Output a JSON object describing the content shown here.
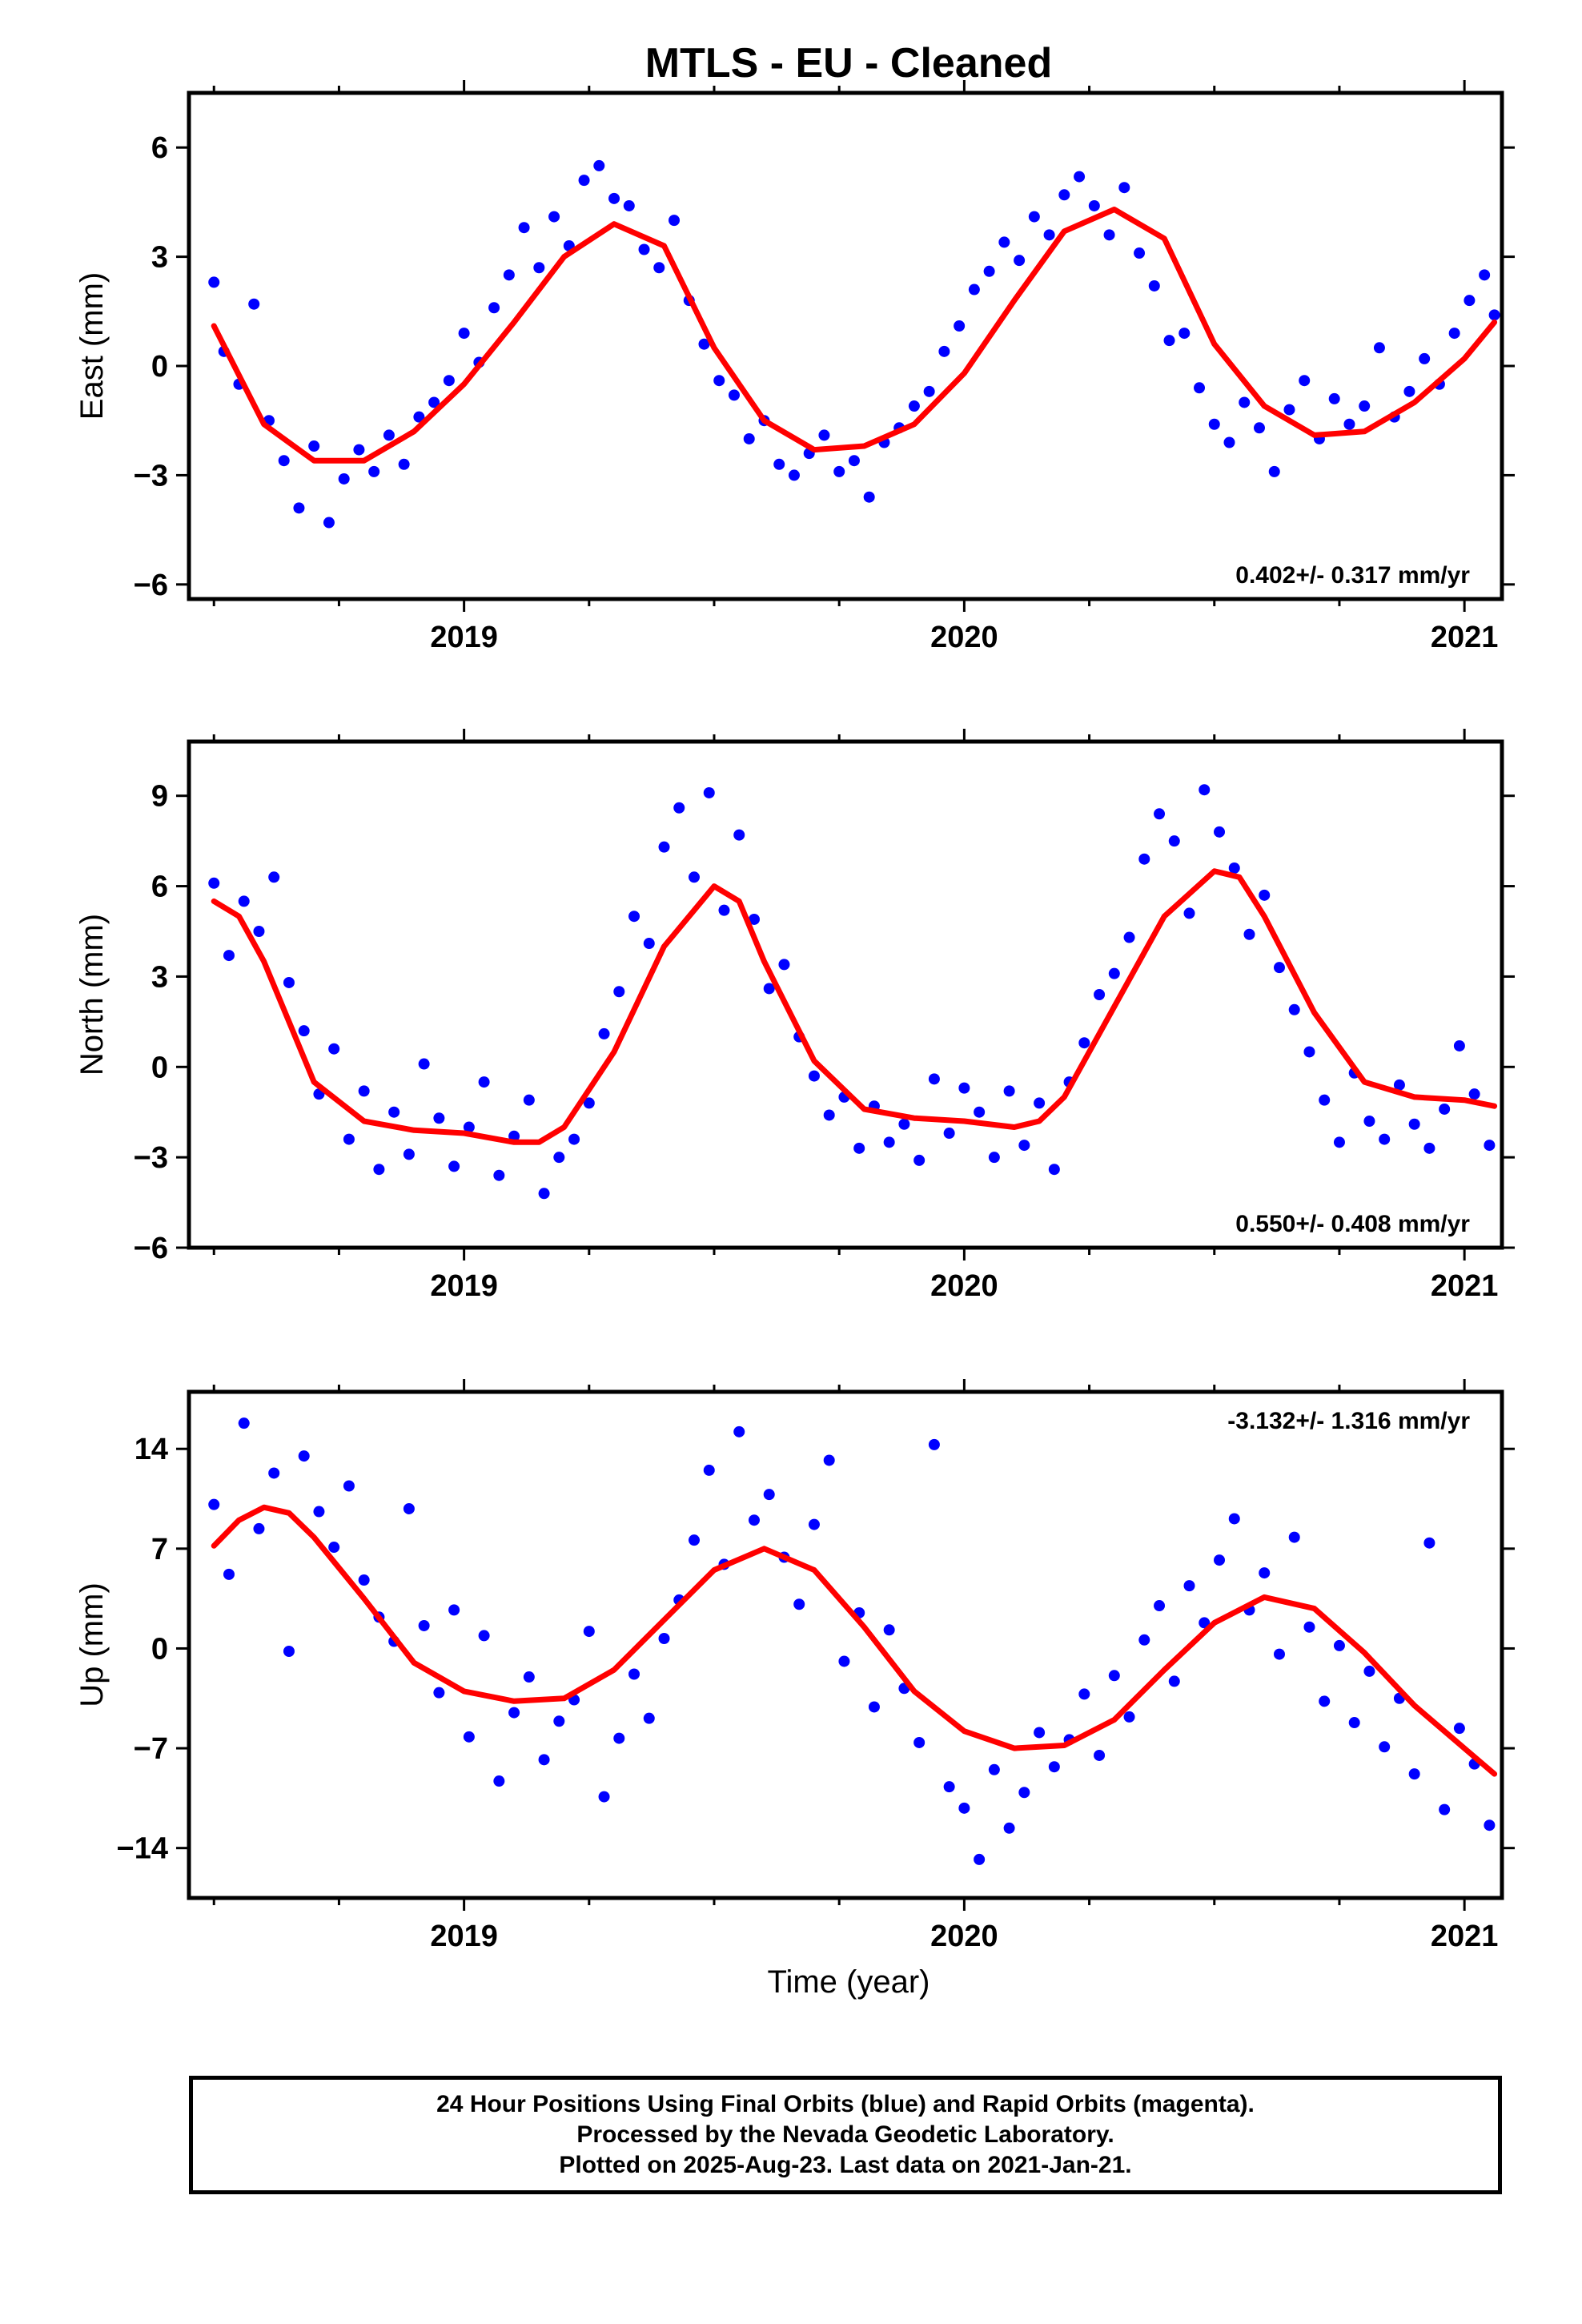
{
  "title": "MTLS  - EU - Cleaned",
  "x_axis_label": "Time (year)",
  "caption": {
    "line1": "24 Hour Positions Using Final Orbits (blue) and Rapid Orbits (magenta).",
    "line2": "Processed by the Nevada Geodetic Laboratory.",
    "line3": "Plotted on 2025-Aug-23. Last data on 2021-Jan-21."
  },
  "colors": {
    "points": "#0000ff",
    "fit": "#ff0000",
    "frame": "#000000"
  },
  "chart_data": [
    {
      "type": "scatter",
      "ylabel": "East (mm)",
      "rate_text": "0.402+/- 0.317 mm/yr",
      "xlim": [
        2018.45,
        2021.075
      ],
      "ylim": [
        -6.4,
        7.5
      ],
      "yticks": [
        6,
        3,
        0,
        -3,
        -6
      ],
      "ytick_labels": [
        "6",
        "3",
        "0",
        "−3",
        "−6"
      ],
      "xticks": [
        2019,
        2020,
        2021
      ],
      "xtick_labels": [
        "2019",
        "2020",
        "2021"
      ],
      "fit_curve": {
        "x": [
          2018.5,
          2018.6,
          2018.7,
          2018.8,
          2018.9,
          2019.0,
          2019.1,
          2019.2,
          2019.3,
          2019.4,
          2019.5,
          2019.6,
          2019.7,
          2019.8,
          2019.9,
          2020.0,
          2020.1,
          2020.2,
          2020.3,
          2020.4,
          2020.5,
          2020.6,
          2020.7,
          2020.8,
          2020.9,
          2021.0,
          2021.06
        ],
        "y": [
          1.1,
          -1.6,
          -2.6,
          -2.6,
          -1.8,
          -0.5,
          1.2,
          3.0,
          3.9,
          3.3,
          0.5,
          -1.5,
          -2.3,
          -2.2,
          -1.6,
          -0.2,
          1.8,
          3.7,
          4.3,
          3.5,
          0.6,
          -1.1,
          -1.9,
          -1.8,
          -1.0,
          0.2,
          1.2
        ]
      },
      "points": {
        "x": [
          2018.5,
          2018.52,
          2018.55,
          2018.58,
          2018.61,
          2018.64,
          2018.67,
          2018.7,
          2018.73,
          2018.76,
          2018.79,
          2018.82,
          2018.85,
          2018.88,
          2018.91,
          2018.94,
          2018.97,
          2019.0,
          2019.03,
          2019.06,
          2019.09,
          2019.12,
          2019.15,
          2019.18,
          2019.21,
          2019.24,
          2019.27,
          2019.3,
          2019.33,
          2019.36,
          2019.39,
          2019.42,
          2019.45,
          2019.48,
          2019.51,
          2019.54,
          2019.57,
          2019.6,
          2019.63,
          2019.66,
          2019.69,
          2019.72,
          2019.75,
          2019.78,
          2019.81,
          2019.84,
          2019.87,
          2019.9,
          2019.93,
          2019.96,
          2019.99,
          2020.02,
          2020.05,
          2020.08,
          2020.11,
          2020.14,
          2020.17,
          2020.2,
          2020.23,
          2020.26,
          2020.29,
          2020.32,
          2020.35,
          2020.38,
          2020.41,
          2020.44,
          2020.47,
          2020.5,
          2020.53,
          2020.56,
          2020.59,
          2020.62,
          2020.65,
          2020.68,
          2020.71,
          2020.74,
          2020.77,
          2020.8,
          2020.83,
          2020.86,
          2020.89,
          2020.92,
          2020.95,
          2020.98,
          2021.01,
          2021.04,
          2021.06
        ],
        "y": [
          2.3,
          0.4,
          -0.5,
          1.7,
          -1.5,
          -2.6,
          -3.9,
          -2.2,
          -4.3,
          -3.1,
          -2.3,
          -2.9,
          -1.9,
          -2.7,
          -1.4,
          -1.0,
          -0.4,
          0.9,
          0.1,
          1.6,
          2.5,
          3.8,
          2.7,
          4.1,
          3.3,
          5.1,
          5.5,
          4.6,
          4.4,
          3.2,
          2.7,
          4.0,
          1.8,
          0.6,
          -0.4,
          -0.8,
          -2.0,
          -1.5,
          -2.7,
          -3.0,
          -2.4,
          -1.9,
          -2.9,
          -2.6,
          -3.6,
          -2.1,
          -1.7,
          -1.1,
          -0.7,
          0.4,
          1.1,
          2.1,
          2.6,
          3.4,
          2.9,
          4.1,
          3.6,
          4.7,
          5.2,
          4.4,
          3.6,
          4.9,
          3.1,
          2.2,
          0.7,
          0.9,
          -0.6,
          -1.6,
          -2.1,
          -1.0,
          -1.7,
          -2.9,
          -1.2,
          -0.4,
          -2.0,
          -0.9,
          -1.6,
          -1.1,
          0.5,
          -1.4,
          -0.7,
          0.2,
          -0.5,
          0.9,
          1.8,
          2.5,
          1.4
        ]
      }
    },
    {
      "type": "scatter",
      "ylabel": "North (mm)",
      "rate_text": "0.550+/- 0.408 mm/yr",
      "xlim": [
        2018.45,
        2021.075
      ],
      "ylim": [
        -6.0,
        10.8
      ],
      "yticks": [
        9,
        6,
        3,
        0,
        -3,
        -6
      ],
      "ytick_labels": [
        "9",
        "6",
        "3",
        "0",
        "−3",
        "−6"
      ],
      "xticks": [
        2019,
        2020,
        2021
      ],
      "xtick_labels": [
        "2019",
        "2020",
        "2021"
      ],
      "fit_curve": {
        "x": [
          2018.5,
          2018.55,
          2018.6,
          2018.65,
          2018.7,
          2018.8,
          2018.9,
          2019.0,
          2019.1,
          2019.15,
          2019.2,
          2019.3,
          2019.4,
          2019.5,
          2019.55,
          2019.6,
          2019.7,
          2019.8,
          2019.9,
          2020.0,
          2020.1,
          2020.15,
          2020.2,
          2020.3,
          2020.4,
          2020.5,
          2020.55,
          2020.6,
          2020.7,
          2020.8,
          2020.9,
          2021.0,
          2021.06
        ],
        "y": [
          5.5,
          5.0,
          3.5,
          1.5,
          -0.5,
          -1.8,
          -2.1,
          -2.2,
          -2.5,
          -2.5,
          -2.0,
          0.5,
          4.0,
          6.0,
          5.5,
          3.5,
          0.2,
          -1.4,
          -1.7,
          -1.8,
          -2.0,
          -1.8,
          -1.0,
          2.0,
          5.0,
          6.5,
          6.3,
          5.0,
          1.8,
          -0.5,
          -1.0,
          -1.1,
          -1.3
        ]
      },
      "points": {
        "x": [
          2018.5,
          2018.53,
          2018.56,
          2018.59,
          2018.62,
          2018.65,
          2018.68,
          2018.71,
          2018.74,
          2018.77,
          2018.8,
          2018.83,
          2018.86,
          2018.89,
          2018.92,
          2018.95,
          2018.98,
          2019.01,
          2019.04,
          2019.07,
          2019.1,
          2019.13,
          2019.16,
          2019.19,
          2019.22,
          2019.25,
          2019.28,
          2019.31,
          2019.34,
          2019.37,
          2019.4,
          2019.43,
          2019.46,
          2019.49,
          2019.52,
          2019.55,
          2019.58,
          2019.61,
          2019.64,
          2019.67,
          2019.7,
          2019.73,
          2019.76,
          2019.79,
          2019.82,
          2019.85,
          2019.88,
          2019.91,
          2019.94,
          2019.97,
          2020.0,
          2020.03,
          2020.06,
          2020.09,
          2020.12,
          2020.15,
          2020.18,
          2020.21,
          2020.24,
          2020.27,
          2020.3,
          2020.33,
          2020.36,
          2020.39,
          2020.42,
          2020.45,
          2020.48,
          2020.51,
          2020.54,
          2020.57,
          2020.6,
          2020.63,
          2020.66,
          2020.69,
          2020.72,
          2020.75,
          2020.78,
          2020.81,
          2020.84,
          2020.87,
          2020.9,
          2020.93,
          2020.96,
          2020.99,
          2021.02,
          2021.05
        ],
        "y": [
          6.1,
          3.7,
          5.5,
          4.5,
          6.3,
          2.8,
          1.2,
          -0.9,
          0.6,
          -2.4,
          -0.8,
          -3.4,
          -1.5,
          -2.9,
          0.1,
          -1.7,
          -3.3,
          -2.0,
          -0.5,
          -3.6,
          -2.3,
          -1.1,
          -4.2,
          -3.0,
          -2.4,
          -1.2,
          1.1,
          2.5,
          5.0,
          4.1,
          7.3,
          8.6,
          6.3,
          9.1,
          5.2,
          7.7,
          4.9,
          2.6,
          3.4,
          1.0,
          -0.3,
          -1.6,
          -1.0,
          -2.7,
          -1.3,
          -2.5,
          -1.9,
          -3.1,
          -0.4,
          -2.2,
          -0.7,
          -1.5,
          -3.0,
          -0.8,
          -2.6,
          -1.2,
          -3.4,
          -0.5,
          0.8,
          2.4,
          3.1,
          4.3,
          6.9,
          8.4,
          7.5,
          5.1,
          9.2,
          7.8,
          6.6,
          4.4,
          5.7,
          3.3,
          1.9,
          0.5,
          -1.1,
          -2.5,
          -0.2,
          -1.8,
          -2.4,
          -0.6,
          -1.9,
          -2.7,
          -1.4,
          0.7,
          -0.9,
          -2.6
        ]
      }
    },
    {
      "type": "scatter",
      "ylabel": "Up (mm)",
      "rate_text": "-3.132+/- 1.316 mm/yr",
      "xlim": [
        2018.45,
        2021.075
      ],
      "ylim": [
        -17.5,
        18.0
      ],
      "yticks": [
        14,
        7,
        0,
        -7,
        -14
      ],
      "ytick_labels": [
        "14",
        "7",
        "0",
        "−7",
        "−14"
      ],
      "xticks": [
        2019,
        2020,
        2021
      ],
      "xtick_labels": [
        "2019",
        "2020",
        "2021"
      ],
      "fit_curve": {
        "x": [
          2018.5,
          2018.55,
          2018.6,
          2018.65,
          2018.7,
          2018.8,
          2018.9,
          2019.0,
          2019.1,
          2019.2,
          2019.3,
          2019.4,
          2019.5,
          2019.6,
          2019.7,
          2019.8,
          2019.9,
          2020.0,
          2020.1,
          2020.2,
          2020.3,
          2020.4,
          2020.5,
          2020.6,
          2020.7,
          2020.8,
          2020.9,
          2021.0,
          2021.06
        ],
        "y": [
          7.2,
          9.0,
          9.9,
          9.5,
          7.8,
          3.5,
          -1.0,
          -3.0,
          -3.7,
          -3.5,
          -1.5,
          2.0,
          5.5,
          7.0,
          5.5,
          1.5,
          -3.0,
          -5.8,
          -7.0,
          -6.8,
          -5.0,
          -1.5,
          1.8,
          3.6,
          2.8,
          -0.3,
          -4.0,
          -7.0,
          -8.8
        ]
      },
      "points": {
        "x": [
          2018.5,
          2018.53,
          2018.56,
          2018.59,
          2018.62,
          2018.65,
          2018.68,
          2018.71,
          2018.74,
          2018.77,
          2018.8,
          2018.83,
          2018.86,
          2018.89,
          2018.92,
          2018.95,
          2018.98,
          2019.01,
          2019.04,
          2019.07,
          2019.1,
          2019.13,
          2019.16,
          2019.19,
          2019.22,
          2019.25,
          2019.28,
          2019.31,
          2019.34,
          2019.37,
          2019.4,
          2019.43,
          2019.46,
          2019.49,
          2019.52,
          2019.55,
          2019.58,
          2019.61,
          2019.64,
          2019.67,
          2019.7,
          2019.73,
          2019.76,
          2019.79,
          2019.82,
          2019.85,
          2019.88,
          2019.91,
          2019.94,
          2019.97,
          2020.0,
          2020.03,
          2020.06,
          2020.09,
          2020.12,
          2020.15,
          2020.18,
          2020.21,
          2020.24,
          2020.27,
          2020.3,
          2020.33,
          2020.36,
          2020.39,
          2020.42,
          2020.45,
          2020.48,
          2020.51,
          2020.54,
          2020.57,
          2020.6,
          2020.63,
          2020.66,
          2020.69,
          2020.72,
          2020.75,
          2020.78,
          2020.81,
          2020.84,
          2020.87,
          2020.9,
          2020.93,
          2020.96,
          2020.99,
          2021.02,
          2021.05
        ],
        "y": [
          10.1,
          5.2,
          15.8,
          8.4,
          12.3,
          -0.2,
          13.5,
          9.6,
          7.1,
          11.4,
          4.8,
          2.2,
          0.5,
          9.8,
          1.6,
          -3.1,
          2.7,
          -6.2,
          0.9,
          -9.3,
          -4.5,
          -2.0,
          -7.8,
          -5.1,
          -3.6,
          1.2,
          -10.4,
          -6.3,
          -1.8,
          -4.9,
          0.7,
          3.4,
          7.6,
          12.5,
          5.9,
          15.2,
          9.0,
          10.8,
          6.4,
          3.1,
          8.7,
          13.2,
          -0.9,
          2.5,
          -4.1,
          1.3,
          -2.8,
          -6.6,
          14.3,
          -9.7,
          -11.2,
          -14.8,
          -8.5,
          -12.6,
          -10.1,
          -5.9,
          -8.3,
          -6.4,
          -3.2,
          -7.5,
          -1.9,
          -4.8,
          0.6,
          3.0,
          -2.3,
          4.4,
          1.8,
          6.2,
          9.1,
          2.7,
          5.3,
          -0.4,
          7.8,
          1.5,
          -3.7,
          0.2,
          -5.2,
          -1.6,
          -6.9,
          -3.5,
          -8.8,
          7.4,
          -11.3,
          -5.6,
          -8.1,
          -12.4
        ]
      }
    }
  ]
}
